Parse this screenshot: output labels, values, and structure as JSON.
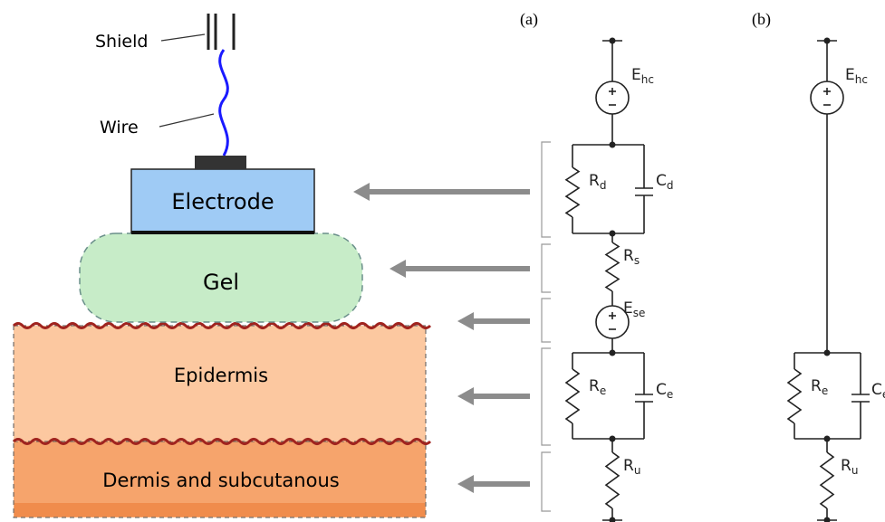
{
  "labels": {
    "shield": "Shield",
    "wire": "Wire",
    "electrode": "Electrode",
    "gel": "Gel",
    "epidermis": "Epidermis",
    "dermis": "Dermis and subcutanous"
  },
  "panels": [
    {
      "label": "(a)",
      "components": [
        {
          "symbol": "E",
          "sub": "hc"
        },
        {
          "symbol": "R",
          "sub": "d"
        },
        {
          "symbol": "C",
          "sub": "d"
        },
        {
          "symbol": "R",
          "sub": "s"
        },
        {
          "symbol": "E",
          "sub": "se"
        },
        {
          "symbol": "R",
          "sub": "e"
        },
        {
          "symbol": "C",
          "sub": "e"
        },
        {
          "symbol": "R",
          "sub": "u"
        }
      ]
    },
    {
      "label": "(b)",
      "components": [
        {
          "symbol": "E",
          "sub": "hc"
        },
        {
          "symbol": "R",
          "sub": "e"
        },
        {
          "symbol": "C",
          "sub": "e"
        },
        {
          "symbol": "R",
          "sub": "u"
        }
      ]
    }
  ]
}
